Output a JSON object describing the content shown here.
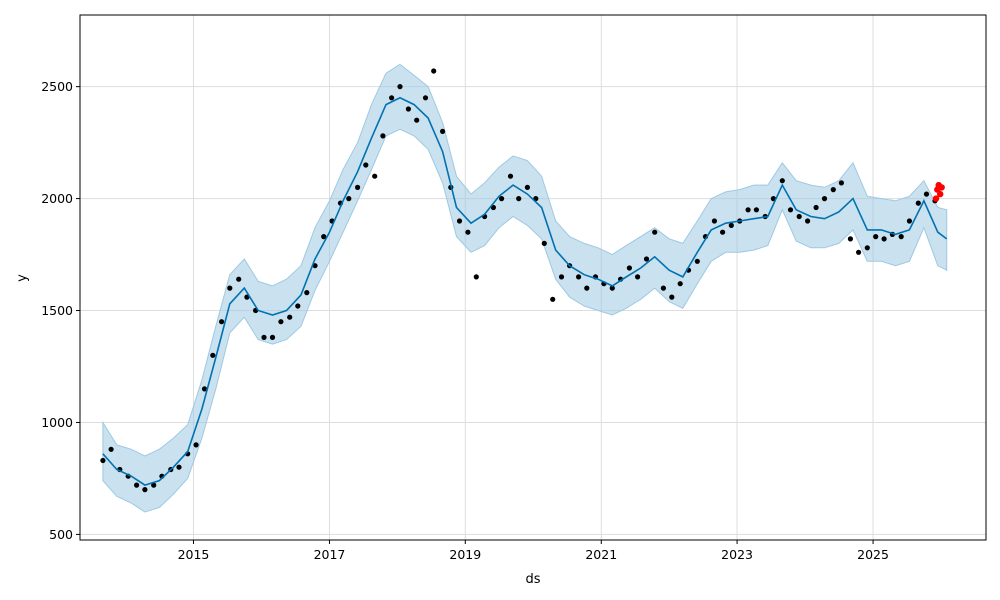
{
  "chart_data": {
    "type": "line",
    "title": "",
    "xlabel": "ds",
    "ylabel": "y",
    "x_tick_labels": [
      "2015",
      "2017",
      "2019",
      "2021",
      "2023",
      "2025"
    ],
    "y_tick_labels": [
      "500",
      "1000",
      "1500",
      "2000",
      "2500"
    ],
    "y_ticks": [
      500,
      1000,
      1500,
      2000,
      2500
    ],
    "xlim": [
      "2013-05-01",
      "2026-08-31"
    ],
    "ylim": [
      475,
      2820
    ],
    "grid": true,
    "colors": {
      "observed": "#000000",
      "forecast": "#0072B2",
      "interval": "#9ec9e2",
      "recent_actual": "#ff0000"
    },
    "series": [
      {
        "type": "line",
        "x": [
          "2013-09-01",
          "2013-11-15",
          "2014-02-01",
          "2014-04-15",
          "2014-07-01",
          "2014-09-15",
          "2014-12-01",
          "2015-02-15",
          "2015-05-01",
          "2015-07-15",
          "2015-10-01",
          "2015-12-15",
          "2016-03-01",
          "2016-05-15",
          "2016-08-01",
          "2016-10-15",
          "2017-01-01",
          "2017-03-15",
          "2017-06-01",
          "2017-08-15",
          "2017-11-01",
          "2018-01-15",
          "2018-04-01",
          "2018-06-15",
          "2018-09-01",
          "2018-11-15",
          "2019-02-01",
          "2019-04-15",
          "2019-07-01",
          "2019-09-15",
          "2019-12-01",
          "2020-02-15",
          "2020-05-01",
          "2020-07-15",
          "2020-10-01",
          "2020-12-15",
          "2021-03-01",
          "2021-05-15",
          "2021-08-01",
          "2021-10-15",
          "2022-01-01",
          "2022-03-15",
          "2022-06-01",
          "2022-08-15",
          "2022-11-01",
          "2023-01-15",
          "2023-04-01",
          "2023-06-15",
          "2023-09-01",
          "2023-11-15",
          "2024-02-01",
          "2024-04-15",
          "2024-07-01",
          "2024-09-15",
          "2024-12-01",
          "2025-02-15",
          "2025-05-01",
          "2025-07-15",
          "2025-10-01",
          "2025-12-15",
          "2026-02-01"
        ],
        "values": [
          860,
          790,
          760,
          720,
          740,
          800,
          870,
          1060,
          1290,
          1530,
          1600,
          1500,
          1480,
          1500,
          1570,
          1730,
          1850,
          1990,
          2120,
          2270,
          2420,
          2450,
          2420,
          2360,
          2210,
          1960,
          1890,
          1930,
          2010,
          2060,
          2020,
          1960,
          1770,
          1700,
          1660,
          1640,
          1610,
          1650,
          1690,
          1740,
          1680,
          1650,
          1760,
          1860,
          1890,
          1900,
          1910,
          1920,
          2060,
          1950,
          1920,
          1910,
          1940,
          2000,
          1860,
          1860,
          1840,
          1860,
          1990,
          1850,
          1820
        ]
      },
      {
        "type": "band",
        "x": [
          "2013-09-01",
          "2013-11-15",
          "2014-02-01",
          "2014-04-15",
          "2014-07-01",
          "2014-09-15",
          "2014-12-01",
          "2015-02-15",
          "2015-05-01",
          "2015-07-15",
          "2015-10-01",
          "2015-12-15",
          "2016-03-01",
          "2016-05-15",
          "2016-08-01",
          "2016-10-15",
          "2017-01-01",
          "2017-03-15",
          "2017-06-01",
          "2017-08-15",
          "2017-11-01",
          "2018-01-15",
          "2018-04-01",
          "2018-06-15",
          "2018-09-01",
          "2018-11-15",
          "2019-02-01",
          "2019-04-15",
          "2019-07-01",
          "2019-09-15",
          "2019-12-01",
          "2020-02-15",
          "2020-05-01",
          "2020-07-15",
          "2020-10-01",
          "2020-12-15",
          "2021-03-01",
          "2021-05-15",
          "2021-08-01",
          "2021-10-15",
          "2022-01-01",
          "2022-03-15",
          "2022-06-01",
          "2022-08-15",
          "2022-11-01",
          "2023-01-15",
          "2023-04-01",
          "2023-06-15",
          "2023-09-01",
          "2023-11-15",
          "2024-02-01",
          "2024-04-15",
          "2024-07-01",
          "2024-09-15",
          "2024-12-01",
          "2025-02-15",
          "2025-05-01",
          "2025-07-15",
          "2025-10-01",
          "2025-12-15",
          "2026-02-01"
        ],
        "upper": [
          1000,
          900,
          880,
          850,
          880,
          930,
          990,
          1190,
          1430,
          1660,
          1730,
          1630,
          1610,
          1640,
          1700,
          1870,
          1990,
          2130,
          2250,
          2420,
          2560,
          2600,
          2550,
          2500,
          2340,
          2100,
          2020,
          2070,
          2140,
          2190,
          2170,
          2100,
          1900,
          1830,
          1800,
          1780,
          1750,
          1790,
          1830,
          1870,
          1820,
          1800,
          1900,
          2000,
          2030,
          2040,
          2060,
          2060,
          2160,
          2080,
          2060,
          2050,
          2080,
          2160,
          2010,
          2000,
          1990,
          2010,
          2080,
          1960,
          1950
        ],
        "lower": [
          740,
          670,
          640,
          600,
          620,
          680,
          750,
          930,
          1150,
          1400,
          1470,
          1370,
          1350,
          1370,
          1430,
          1590,
          1720,
          1850,
          1990,
          2130,
          2280,
          2310,
          2280,
          2220,
          2070,
          1830,
          1760,
          1790,
          1870,
          1920,
          1880,
          1820,
          1640,
          1560,
          1520,
          1500,
          1480,
          1510,
          1550,
          1600,
          1540,
          1510,
          1620,
          1720,
          1760,
          1760,
          1770,
          1790,
          1950,
          1810,
          1780,
          1780,
          1800,
          1860,
          1720,
          1720,
          1700,
          1720,
          1870,
          1700,
          1680
        ]
      },
      {
        "type": "scatter",
        "x": [
          "2013-09-01",
          "2013-10-15",
          "2013-12-01",
          "2014-01-15",
          "2014-03-01",
          "2014-04-15",
          "2014-06-01",
          "2014-07-15",
          "2014-09-01",
          "2014-10-15",
          "2014-12-01",
          "2015-01-15",
          "2015-03-01",
          "2015-04-15",
          "2015-06-01",
          "2015-07-15",
          "2015-09-01",
          "2015-10-15",
          "2015-12-01",
          "2016-01-15",
          "2016-03-01",
          "2016-04-15",
          "2016-06-01",
          "2016-07-15",
          "2016-09-01",
          "2016-10-15",
          "2016-12-01",
          "2017-01-15",
          "2017-03-01",
          "2017-04-15",
          "2017-06-01",
          "2017-07-15",
          "2017-09-01",
          "2017-10-15",
          "2017-12-01",
          "2018-01-15",
          "2018-03-01",
          "2018-04-15",
          "2018-06-01",
          "2018-07-15",
          "2018-09-01",
          "2018-10-15",
          "2018-12-01",
          "2019-01-15",
          "2019-03-01",
          "2019-04-15",
          "2019-06-01",
          "2019-07-15",
          "2019-09-01",
          "2019-10-15",
          "2019-12-01",
          "2020-01-15",
          "2020-03-01",
          "2020-04-15",
          "2020-06-01",
          "2020-07-15",
          "2020-09-01",
          "2020-10-15",
          "2020-12-01",
          "2021-01-15",
          "2021-03-01",
          "2021-04-15",
          "2021-06-01",
          "2021-07-15",
          "2021-09-01",
          "2021-10-15",
          "2021-12-01",
          "2022-01-15",
          "2022-03-01",
          "2022-04-15",
          "2022-06-01",
          "2022-07-15",
          "2022-09-01",
          "2022-10-15",
          "2022-12-01",
          "2023-01-15",
          "2023-03-01",
          "2023-04-15",
          "2023-06-01",
          "2023-07-15",
          "2023-09-01",
          "2023-10-15",
          "2023-12-01",
          "2024-01-15",
          "2024-03-01",
          "2024-04-15",
          "2024-06-01",
          "2024-07-15",
          "2024-09-01",
          "2024-10-15",
          "2024-12-01",
          "2025-01-15",
          "2025-03-01",
          "2025-04-15",
          "2025-06-01",
          "2025-07-15",
          "2025-09-01",
          "2025-10-15",
          "2025-11-30"
        ],
        "values": [
          830,
          880,
          790,
          760,
          720,
          700,
          720,
          760,
          790,
          800,
          860,
          900,
          1150,
          1300,
          1450,
          1600,
          1640,
          1560,
          1500,
          1380,
          1380,
          1450,
          1470,
          1520,
          1580,
          1700,
          1830,
          1900,
          1980,
          2000,
          2050,
          2150,
          2100,
          2280,
          2450,
          2500,
          2400,
          2350,
          2450,
          2570,
          2300,
          2050,
          1900,
          1850,
          1650,
          1920,
          1960,
          2000,
          2100,
          2000,
          2050,
          2000,
          1800,
          1550,
          1650,
          1700,
          1650,
          1600,
          1650,
          1620,
          1600,
          1640,
          1690,
          1650,
          1730,
          1850,
          1600,
          1560,
          1620,
          1680,
          1720,
          1830,
          1900,
          1850,
          1880,
          1900,
          1950,
          1950,
          1920,
          2000,
          2080,
          1950,
          1920,
          1900,
          1960,
          2000,
          2040,
          2070,
          1820,
          1760,
          1780,
          1830,
          1820,
          1840,
          1830,
          1900,
          1980,
          2020,
          1990
        ]
      },
      {
        "type": "scatter",
        "x": [
          "2025-12-05",
          "2025-12-12",
          "2025-12-20",
          "2025-12-28",
          "2026-01-05"
        ],
        "values": [
          2000,
          2040,
          2060,
          2020,
          2050
        ]
      }
    ]
  }
}
